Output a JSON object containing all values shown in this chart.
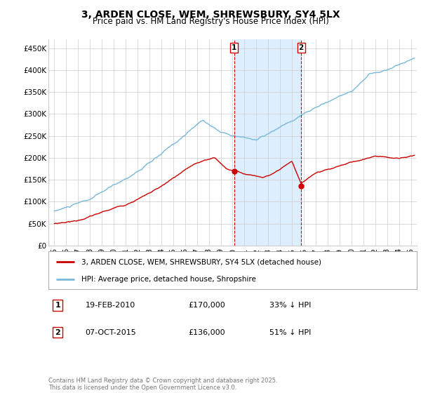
{
  "title": "3, ARDEN CLOSE, WEM, SHREWSBURY, SY4 5LX",
  "subtitle": "Price paid vs. HM Land Registry's House Price Index (HPI)",
  "ylabel_ticks": [
    "£0",
    "£50K",
    "£100K",
    "£150K",
    "£200K",
    "£250K",
    "£300K",
    "£350K",
    "£400K",
    "£450K"
  ],
  "ylim": [
    0,
    470000
  ],
  "xlim_start": 1994.5,
  "xlim_end": 2025.5,
  "transaction1_date": 2010.13,
  "transaction1_label": "1",
  "transaction1_price": 170000,
  "transaction1_hpi_pct": "33% ↓ HPI",
  "transaction1_date_str": "19-FEB-2010",
  "transaction2_date": 2015.77,
  "transaction2_label": "2",
  "transaction2_price": 136000,
  "transaction2_hpi_pct": "51% ↓ HPI",
  "transaction2_date_str": "07-OCT-2015",
  "legend_property": "3, ARDEN CLOSE, WEM, SHREWSBURY, SY4 5LX (detached house)",
  "legend_hpi": "HPI: Average price, detached house, Shropshire",
  "footnote": "Contains HM Land Registry data © Crown copyright and database right 2025.\nThis data is licensed under the Open Government Licence v3.0.",
  "hpi_color": "#7ab8d9",
  "property_color": "#cc0000",
  "transaction_box_color": "#cc0000",
  "shaded_region_color": "#ddeeff",
  "background_color": "#ffffff",
  "grid_color": "#cccccc",
  "title_fontsize": 10,
  "subtitle_fontsize": 8.5,
  "tick_fontsize": 7.5,
  "legend_fontsize": 7.5,
  "detail_fontsize": 8,
  "footnote_fontsize": 6,
  "xtick_labels": [
    "95",
    "96",
    "97",
    "98",
    "99",
    "00",
    "01",
    "02",
    "03",
    "04",
    "05",
    "06",
    "07",
    "08",
    "09",
    "10",
    "11",
    "12",
    "13",
    "14",
    "15",
    "16",
    "17",
    "18",
    "19",
    "20",
    "21",
    "22",
    "23",
    "24",
    "25"
  ],
  "xtick_values": [
    1995,
    1996,
    1997,
    1998,
    1999,
    2000,
    2001,
    2002,
    2003,
    2004,
    2005,
    2006,
    2007,
    2008,
    2009,
    2010,
    2011,
    2012,
    2013,
    2014,
    2015,
    2016,
    2017,
    2018,
    2019,
    2020,
    2021,
    2022,
    2023,
    2024,
    2025
  ]
}
